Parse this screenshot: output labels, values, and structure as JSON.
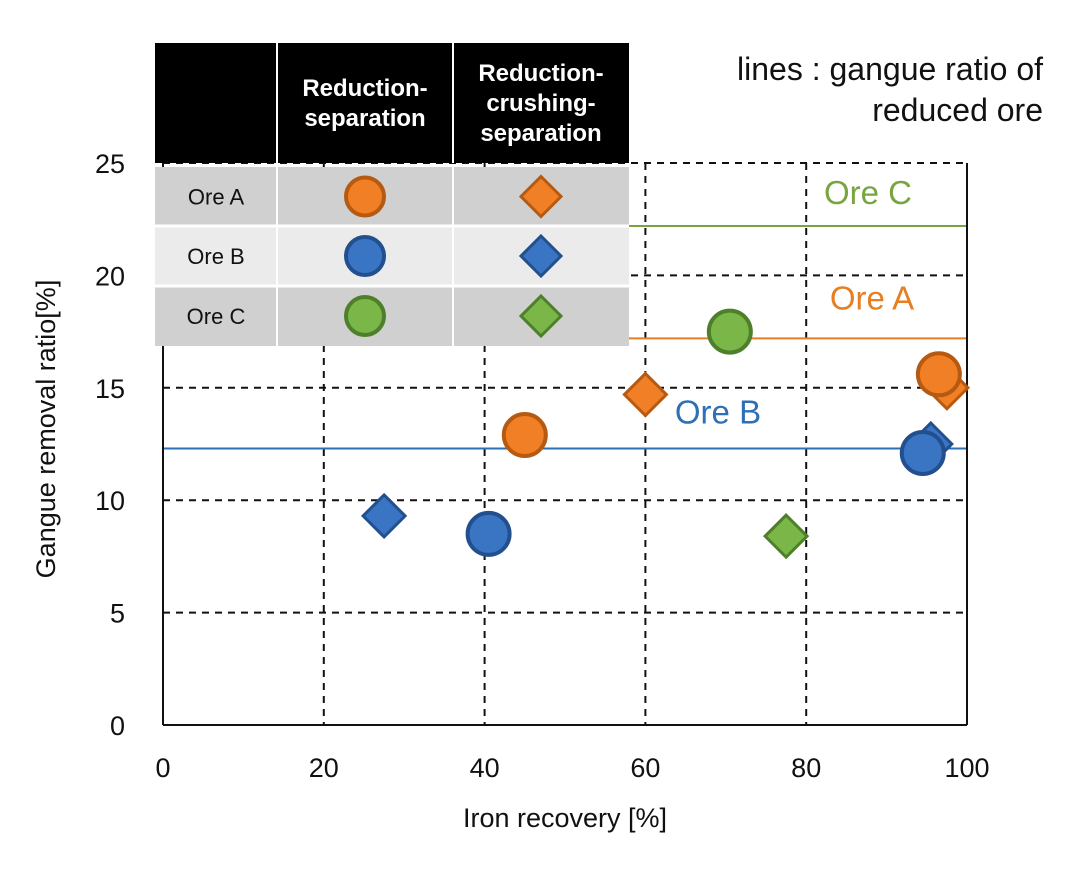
{
  "chart_data": {
    "type": "scatter",
    "xlabel": "Iron recovery [%]",
    "ylabel": "Gangue removal ratio[%]",
    "xlim": [
      0,
      100
    ],
    "ylim": [
      0,
      25
    ],
    "x_ticks": [
      "0",
      "20",
      "40",
      "60",
      "80",
      "100"
    ],
    "y_ticks": [
      "0",
      "5",
      "10",
      "15",
      "20",
      "25"
    ],
    "grid": "dashed",
    "annotation": [
      "lines : gangue ratio  of",
      "reduced ore"
    ],
    "reference_lines": [
      {
        "name": "Ore C",
        "y": 22.2,
        "color": "#77a540"
      },
      {
        "name": "Ore A",
        "y": 17.2,
        "color": "#e67e22"
      },
      {
        "name": "Ore B",
        "y": 12.3,
        "color": "#2e6fb5"
      }
    ],
    "legend": {
      "columns": [
        "Reduction-separation",
        "Reduction-crushing-separation"
      ],
      "column_lines": [
        [
          "Reduction-",
          "separation"
        ],
        [
          "Reduction-",
          "crushing-",
          "separation"
        ]
      ],
      "rows": [
        "Ore A",
        "Ore B",
        "Ore C"
      ]
    },
    "series": [
      {
        "name": "Ore A – Reduction-separation",
        "ore": "Ore A",
        "marker": "circle",
        "color": "#f07f25",
        "stroke": "#b65a12",
        "points": [
          {
            "x": 45,
            "y": 12.9
          },
          {
            "x": 96.5,
            "y": 15.6
          }
        ]
      },
      {
        "name": "Ore A – Reduction-crushing-separation",
        "ore": "Ore A",
        "marker": "diamond",
        "color": "#f07f25",
        "stroke": "#b65a12",
        "points": [
          {
            "x": 60,
            "y": 14.7
          },
          {
            "x": 97.5,
            "y": 15.0
          }
        ]
      },
      {
        "name": "Ore B – Reduction-separation",
        "ore": "Ore B",
        "marker": "circle",
        "color": "#3a75c4",
        "stroke": "#22508f",
        "points": [
          {
            "x": 40.5,
            "y": 8.5
          },
          {
            "x": 94.5,
            "y": 12.1
          }
        ]
      },
      {
        "name": "Ore B – Reduction-crushing-separation",
        "ore": "Ore B",
        "marker": "diamond",
        "color": "#3a75c4",
        "stroke": "#22508f",
        "points": [
          {
            "x": 27.5,
            "y": 9.3
          },
          {
            "x": 95.5,
            "y": 12.5
          }
        ]
      },
      {
        "name": "Ore C – Reduction-separation",
        "ore": "Ore C",
        "marker": "circle",
        "color": "#7ab648",
        "stroke": "#4e7f2a",
        "points": [
          {
            "x": 70.5,
            "y": 17.5
          }
        ]
      },
      {
        "name": "Ore C – Reduction-crushing-separation",
        "ore": "Ore C",
        "marker": "diamond",
        "color": "#7ab648",
        "stroke": "#4e7f2a",
        "points": [
          {
            "x": 77.5,
            "y": 8.4
          }
        ]
      }
    ]
  }
}
